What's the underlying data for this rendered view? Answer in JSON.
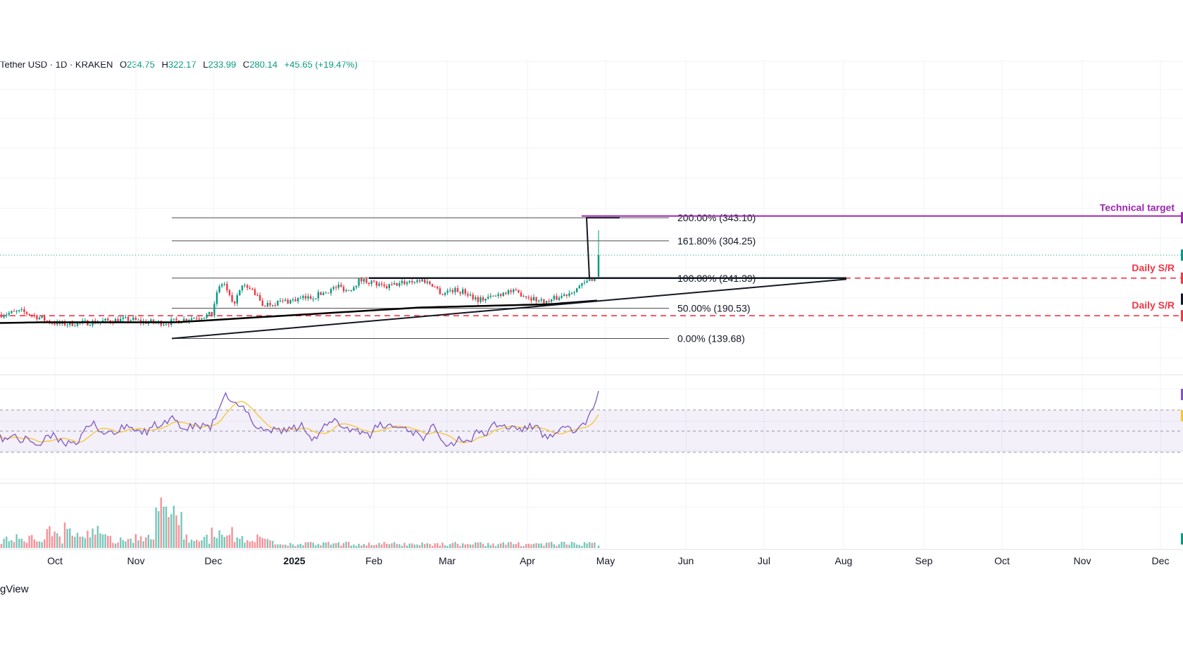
{
  "header": {
    "symbol": "Tether USD · 1D · KRAKEN",
    "o_label": "O",
    "o": "234.75",
    "h_label": "H",
    "h": "322.17",
    "l_label": "L",
    "l": "233.99",
    "c_label": "C",
    "c": "280.14",
    "change": "+45.65 (+19.47%)"
  },
  "branding": "gView",
  "colors": {
    "up": "#089981",
    "down": "#f23645",
    "rsi": "#7e57c2",
    "rsi_ma": "#f7c531",
    "fib": "#4a4a4a",
    "sr": "#f23645",
    "target": "#9c27b0",
    "ma200": "#000000"
  },
  "chart_data": {
    "type": "candlestick",
    "interval": "1D",
    "x_ticks": [
      "Oct",
      "Nov",
      "Dec",
      "2025",
      "Feb",
      "Mar",
      "Apr",
      "May",
      "Jun",
      "Jul",
      "Aug",
      "Sep",
      "Oct",
      "Nov",
      "Dec"
    ],
    "fib_levels": [
      {
        "label": "200.00% (343.10)",
        "value": 343.1
      },
      {
        "label": "161.80% (304.25)",
        "value": 304.25
      },
      {
        "label": "100.00% (241.39)",
        "value": 241.39
      },
      {
        "label": "50.00% (190.53)",
        "value": 190.53
      },
      {
        "label": "0.00% (139.68)",
        "value": 139.68
      }
    ],
    "annotations": [
      {
        "label": "Technical target",
        "value": 346.0
      },
      {
        "label": "Daily S/R",
        "value": 241.39
      },
      {
        "label": "Daily S/R",
        "value": 178.0
      }
    ],
    "last_close": 280.14,
    "volume_panel": true,
    "rsi_panel": {
      "upper": 70,
      "middle": 50,
      "lower": 30
    }
  }
}
